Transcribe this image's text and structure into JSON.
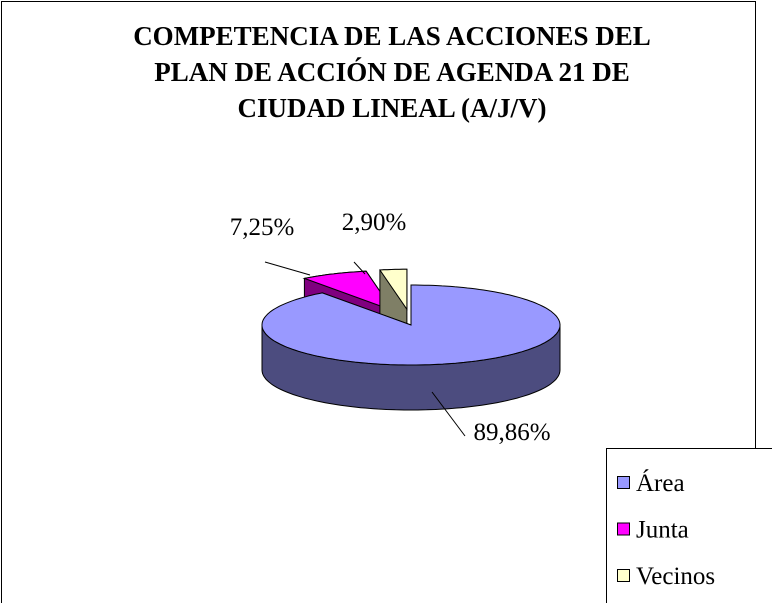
{
  "chart_data": {
    "type": "pie",
    "title": [
      "COMPETENCIA DE LAS ACCIONES DEL",
      "PLAN DE ACCIÓN DE AGENDA 21 DE",
      "CIUDAD LINEAL (A/J/V)"
    ],
    "categories": [
      "Área",
      "Junta",
      "Vecinos"
    ],
    "values": [
      89.86,
      7.25,
      2.9
    ],
    "value_labels": [
      "89,86%",
      "7,25%",
      "2,90%"
    ],
    "colors": [
      "#9999ff",
      "#ff00ff",
      "#ffffcc"
    ],
    "legend": "bottom-right"
  }
}
